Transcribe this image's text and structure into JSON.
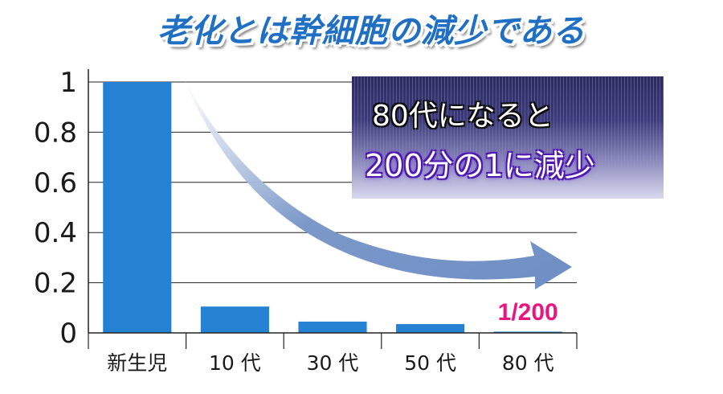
{
  "title": "老化とは幹細胞の減少である",
  "callout": {
    "line1": "80代になると",
    "line2": "200分の1に減少"
  },
  "colors": {
    "bar": "#2581d1",
    "arrow": "#6f8fc3",
    "title": "#1f6fc4",
    "annotation": "#e8177f"
  },
  "chart_data": {
    "type": "bar",
    "categories": [
      "新生児",
      "10 代",
      "30 代",
      "50 代",
      "80 代"
    ],
    "values": [
      1.0,
      0.105,
      0.045,
      0.035,
      0.005
    ],
    "yticks": [
      "0",
      "0.2",
      "0.4",
      "0.6",
      "0.8",
      "1"
    ],
    "ylim": [
      0,
      1
    ],
    "grid": true,
    "annotation": {
      "text": "1/200",
      "category": "80 代"
    }
  }
}
